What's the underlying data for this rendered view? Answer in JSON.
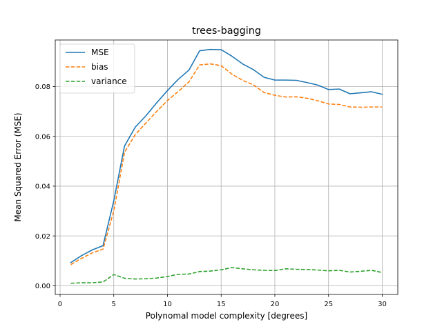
{
  "chart_data": {
    "type": "line",
    "title": "trees-bagging",
    "xlabel": "Polynomal model complexity [degrees]",
    "ylabel": "Mean Squared Error (MSE)",
    "xlim": [
      -0.45,
      31.45
    ],
    "ylim": [
      -0.0035,
      0.0987
    ],
    "x_ticks": [
      0,
      5,
      10,
      15,
      20,
      25,
      30
    ],
    "y_ticks": [
      0.0,
      0.02,
      0.04,
      0.06,
      0.08
    ],
    "y_tick_labels": [
      "0.00",
      "0.02",
      "0.04",
      "0.06",
      "0.08"
    ],
    "grid": true,
    "legend_position": "top-left",
    "x": [
      1,
      2,
      3,
      4,
      5,
      6,
      7,
      8,
      9,
      10,
      11,
      12,
      13,
      14,
      15,
      16,
      17,
      18,
      19,
      20,
      21,
      22,
      23,
      24,
      25,
      26,
      27,
      28,
      29,
      30
    ],
    "series": [
      {
        "name": "MSE",
        "style": "solid",
        "color": "#1f77b4",
        "values": [
          0.0093,
          0.0121,
          0.0144,
          0.0161,
          0.0341,
          0.0561,
          0.0637,
          0.0683,
          0.0735,
          0.0784,
          0.0829,
          0.0866,
          0.0944,
          0.0949,
          0.0948,
          0.0922,
          0.0891,
          0.0868,
          0.0837,
          0.0826,
          0.0826,
          0.0825,
          0.0816,
          0.0806,
          0.0788,
          0.079,
          0.0771,
          0.0775,
          0.0779,
          0.0769
        ]
      },
      {
        "name": "bias",
        "style": "dashed",
        "color": "#ff7f0e",
        "values": [
          0.0085,
          0.011,
          0.0132,
          0.0147,
          0.03,
          0.0536,
          0.0607,
          0.0654,
          0.07,
          0.0744,
          0.078,
          0.0819,
          0.0887,
          0.0891,
          0.0884,
          0.085,
          0.0825,
          0.0807,
          0.0776,
          0.0765,
          0.0758,
          0.0759,
          0.0753,
          0.0743,
          0.073,
          0.0728,
          0.0718,
          0.0717,
          0.0718,
          0.0718
        ]
      },
      {
        "name": "variance",
        "style": "dashed",
        "color": "#2ca02c",
        "values": [
          0.001,
          0.0012,
          0.0012,
          0.0015,
          0.0045,
          0.003,
          0.0027,
          0.0028,
          0.0031,
          0.0037,
          0.0046,
          0.0047,
          0.0057,
          0.0059,
          0.0064,
          0.0073,
          0.0068,
          0.0064,
          0.0062,
          0.0061,
          0.0068,
          0.0066,
          0.0065,
          0.0063,
          0.006,
          0.0062,
          0.0055,
          0.0058,
          0.0062,
          0.0053
        ]
      }
    ]
  }
}
